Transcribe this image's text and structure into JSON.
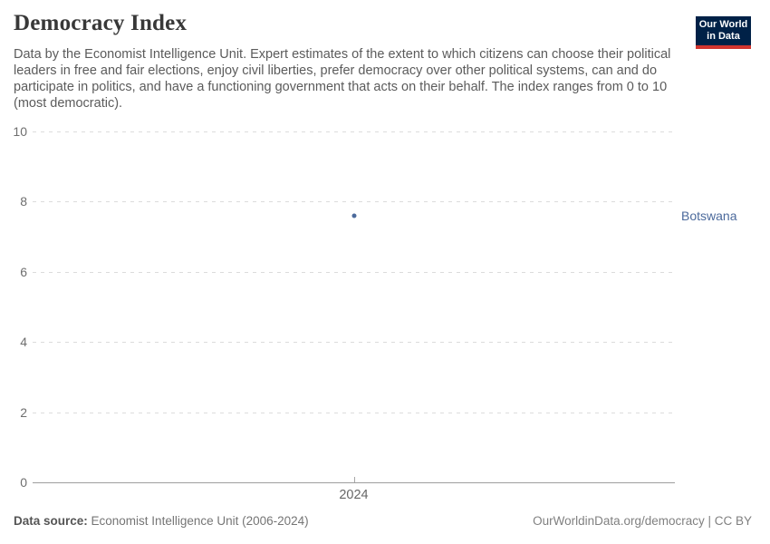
{
  "header": {
    "title": "Democracy Index",
    "subtitle": "Data by the Economist Intelligence Unit. Expert estimates of the extent to which citizens can choose their political leaders in free and fair elections, enjoy civil liberties, prefer democracy over other political systems, can and do participate in politics, and have a functioning government that acts on their behalf. The index ranges from 0 to 10 (most democratic).",
    "logo": {
      "line1": "Our World",
      "line2": "in Data",
      "bg_color": "#002147",
      "stripe_color": "#d2352f"
    }
  },
  "chart_data": {
    "type": "scatter",
    "title": "Democracy Index",
    "x": [
      2024
    ],
    "xtick_labels": [
      "2024"
    ],
    "series": [
      {
        "name": "Botswana",
        "values": [
          7.6
        ],
        "color": "#4c6a9c"
      }
    ],
    "xlabel": "",
    "ylabel": "",
    "ylim": [
      0,
      10
    ],
    "yticks": [
      0,
      2,
      4,
      6,
      8,
      10
    ],
    "grid": "horizontal-dashed",
    "legend_position": "right-of-point",
    "entity_label": "Botswana"
  },
  "footer": {
    "source_label": "Data source:",
    "source_text": " Economist Intelligence Unit (2006-2024)",
    "credit": "OurWorldinData.org/democracy | CC BY"
  }
}
